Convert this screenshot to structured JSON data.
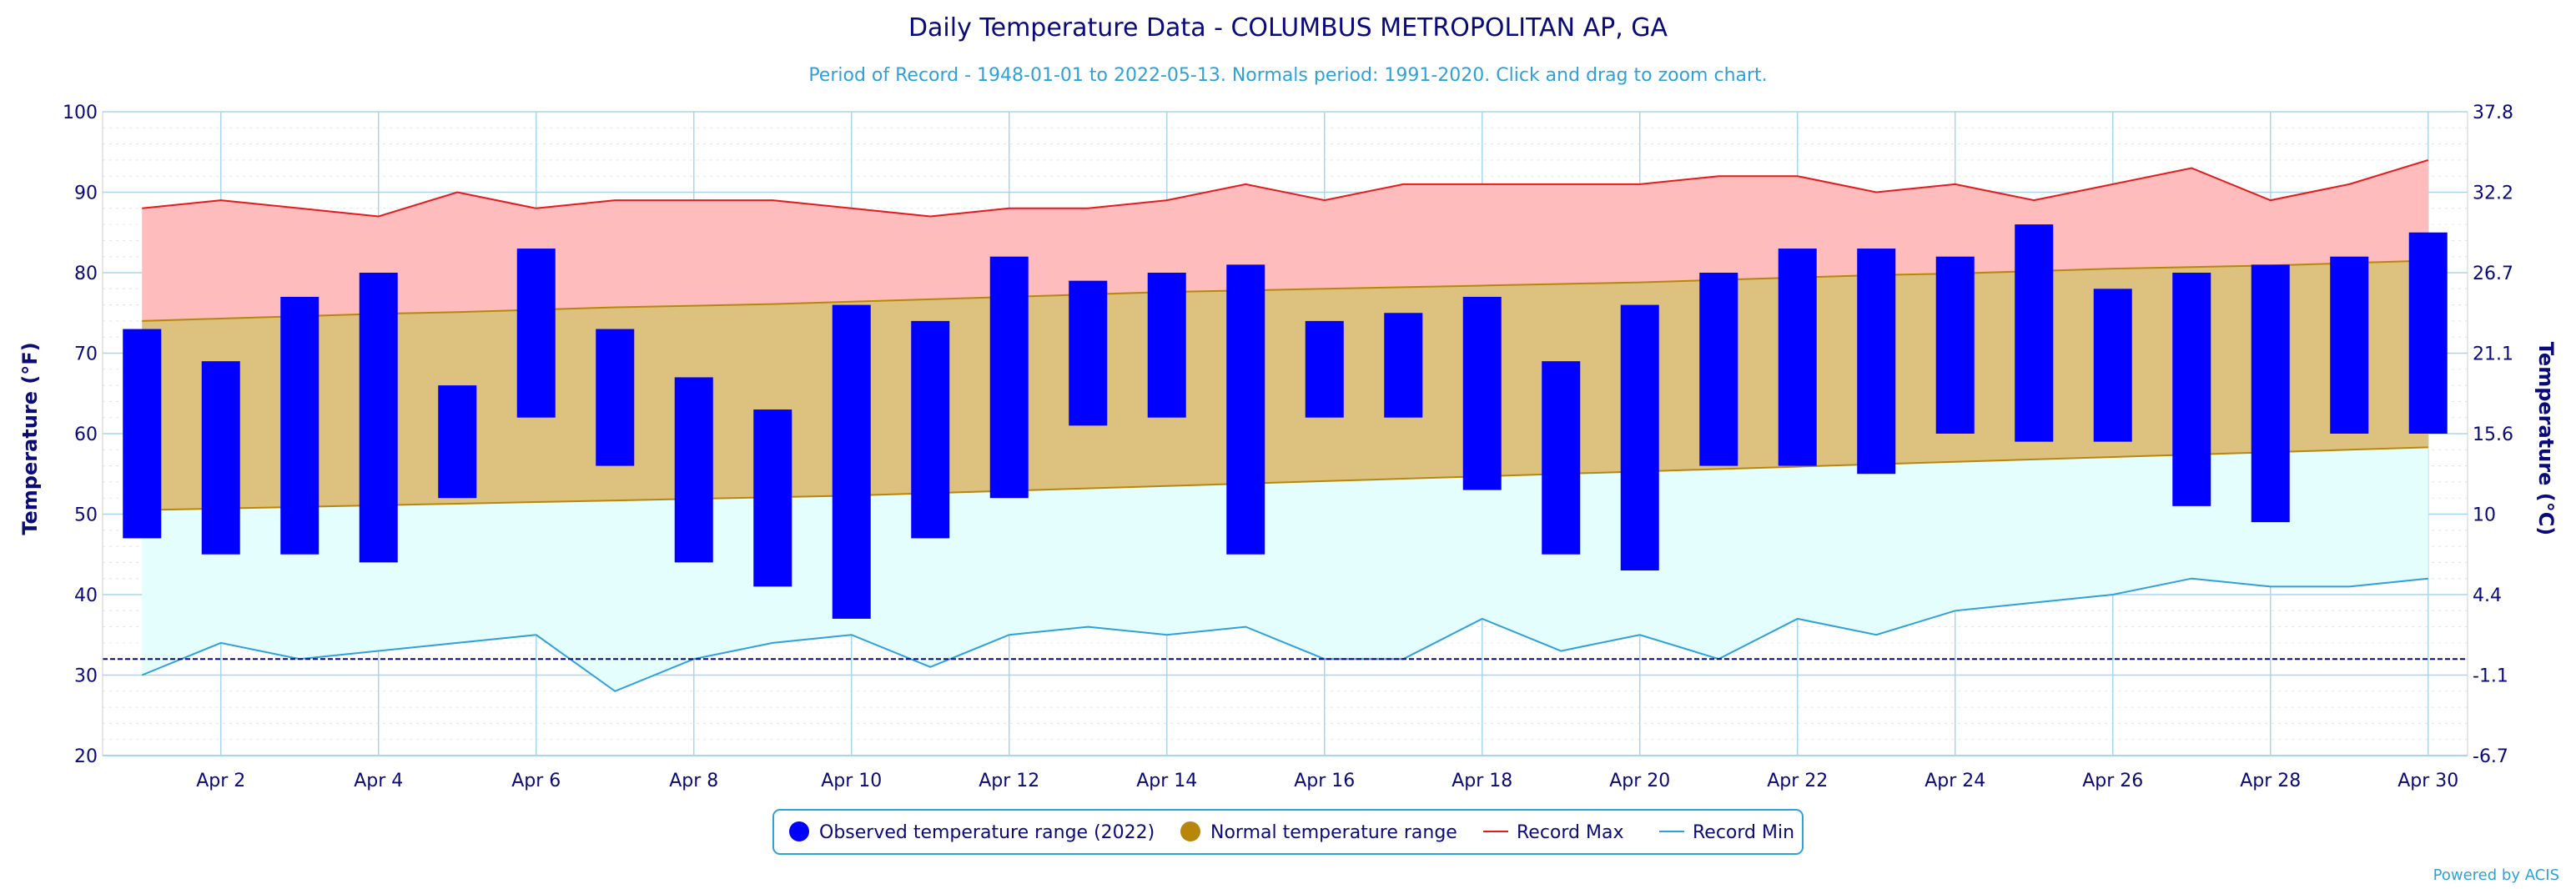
{
  "chart_data": {
    "type": "bar",
    "title": "Daily Temperature Data - COLUMBUS METROPOLITAN AP, GA",
    "subtitle": "Period of Record - 1948-01-01 to 2022-05-13. Normals period: 1991-2020. Click and drag to zoom chart.",
    "ylabel": "Temperature (°F)",
    "ylabel_right": "Temperature (°C)",
    "ylim": [
      20,
      100
    ],
    "y_ticks": [
      20,
      30,
      40,
      50,
      60,
      70,
      80,
      90,
      100
    ],
    "y_ticks_right": [
      "-6.7",
      "-1.1",
      "4.4",
      "10",
      "15.6",
      "21.1",
      "26.7",
      "32.2",
      "37.8"
    ],
    "x_ticks": [
      "Apr 2",
      "Apr 4",
      "Apr 6",
      "Apr 8",
      "Apr 10",
      "Apr 12",
      "Apr 14",
      "Apr 16",
      "Apr 18",
      "Apr 20",
      "Apr 22",
      "Apr 24",
      "Apr 26",
      "Apr 28",
      "Apr 30"
    ],
    "x_tick_days": [
      2,
      4,
      6,
      8,
      10,
      12,
      14,
      16,
      18,
      20,
      22,
      24,
      26,
      28,
      30
    ],
    "days": [
      1,
      2,
      3,
      4,
      5,
      6,
      7,
      8,
      9,
      10,
      11,
      12,
      13,
      14,
      15,
      16,
      17,
      18,
      19,
      20,
      21,
      22,
      23,
      24,
      25,
      26,
      27,
      28,
      29,
      30
    ],
    "freeze_line": 32,
    "grid": true,
    "legend_position": "bottom",
    "series": [
      {
        "name": "Observed temperature range (2022)",
        "type": "columnrange",
        "color": "#0000ff",
        "low": [
          47,
          45,
          45,
          44,
          52,
          62,
          56,
          44,
          41,
          37,
          47,
          52,
          61,
          62,
          45,
          62,
          62,
          53,
          45,
          43,
          56,
          56,
          55,
          60,
          59,
          59,
          51,
          49,
          60,
          60
        ],
        "high": [
          73,
          69,
          77,
          80,
          66,
          83,
          73,
          67,
          63,
          76,
          74,
          82,
          79,
          80,
          81,
          74,
          75,
          77,
          69,
          76,
          80,
          83,
          83,
          82,
          86,
          78,
          80,
          81,
          82,
          85
        ]
      },
      {
        "name": "Normal temperature range",
        "type": "arearange",
        "color": "#b8860b",
        "low": [
          50.5,
          50.7,
          50.9,
          51.1,
          51.3,
          51.5,
          51.7,
          51.9,
          52.1,
          52.3,
          52.6,
          52.9,
          53.2,
          53.5,
          53.8,
          54.1,
          54.4,
          54.7,
          55.0,
          55.3,
          55.6,
          55.9,
          56.2,
          56.5,
          56.8,
          57.1,
          57.4,
          57.7,
          58.0,
          58.3
        ],
        "high": [
          74.0,
          74.3,
          74.6,
          74.9,
          75.1,
          75.4,
          75.7,
          75.9,
          76.1,
          76.4,
          76.7,
          77.0,
          77.3,
          77.6,
          77.8,
          78.0,
          78.2,
          78.4,
          78.6,
          78.8,
          79.1,
          79.4,
          79.7,
          79.9,
          80.2,
          80.5,
          80.7,
          80.9,
          81.2,
          81.5
        ]
      },
      {
        "name": "Record Max",
        "type": "line",
        "color": "#e41a1c",
        "values": [
          88,
          89,
          88,
          87,
          90,
          88,
          89,
          89,
          89,
          88,
          87,
          88,
          88,
          89,
          91,
          89,
          91,
          91,
          91,
          91,
          92,
          92,
          90,
          91,
          89,
          91,
          93,
          89,
          91,
          94
        ]
      },
      {
        "name": "Record Min",
        "type": "line",
        "color": "#2ea1d9",
        "values": [
          30,
          34,
          32,
          33,
          34,
          35,
          28,
          32,
          34,
          35,
          31,
          35,
          36,
          35,
          36,
          32,
          32,
          37,
          33,
          35,
          32,
          37,
          35,
          38,
          39,
          40,
          42,
          41,
          41,
          42
        ]
      }
    ],
    "credit": "Powered by ACIS"
  },
  "colors": {
    "record_fill": "#ffbcbc",
    "normal_fill": "#dcc17f",
    "cold_fill": "#e4fefe",
    "grid": "#a9d6ef",
    "axis_text": "#0a0a78",
    "freeze_line": "#00008b"
  }
}
